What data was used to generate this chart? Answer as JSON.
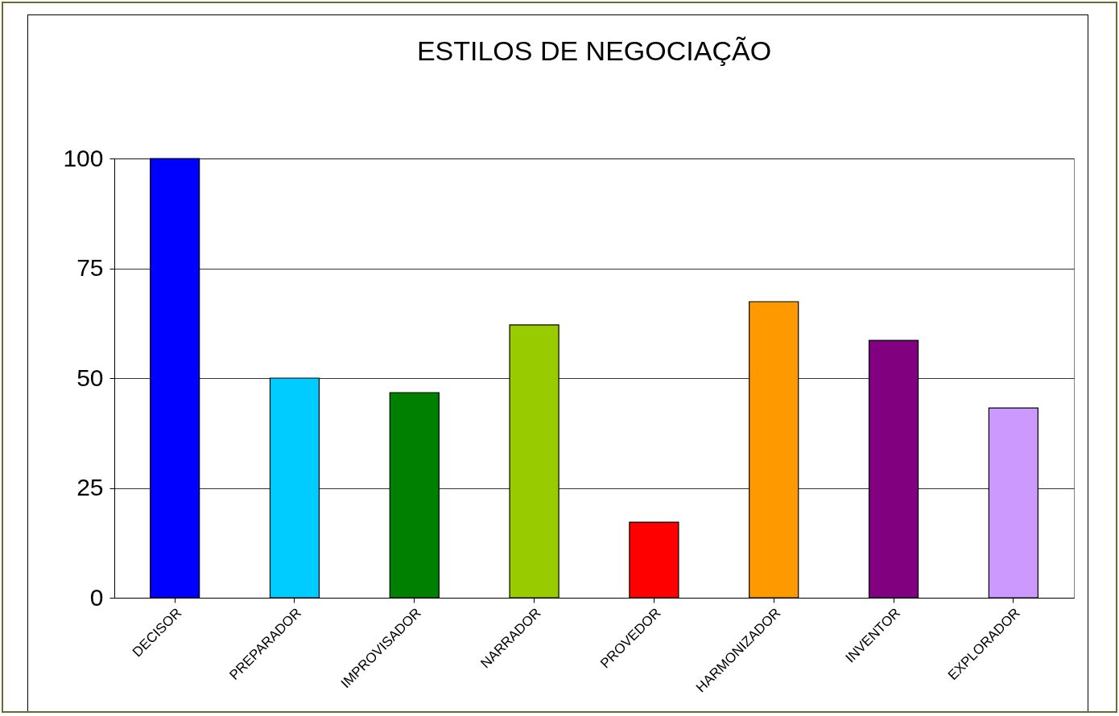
{
  "chart_data": {
    "type": "bar",
    "title": "ESTILOS DE NEGOCIAÇÃO",
    "categories": [
      "DECISOR",
      "PREPARADOR",
      "IMPROVISADOR",
      "NARRADOR",
      "PROVEDOR",
      "HARMONIZADOR",
      "INVENTOR",
      "EXPLORADOR"
    ],
    "values": [
      100,
      50,
      46.7,
      62.1,
      17.2,
      67.4,
      58.6,
      43.2
    ],
    "colors": [
      "#0000ff",
      "#00ccff",
      "#008000",
      "#99cc00",
      "#ff0000",
      "#ff9900",
      "#800080",
      "#cc99ff"
    ],
    "ylim": [
      0,
      100
    ],
    "yticks": [
      0,
      25,
      50,
      75,
      100
    ],
    "grid": "y"
  }
}
